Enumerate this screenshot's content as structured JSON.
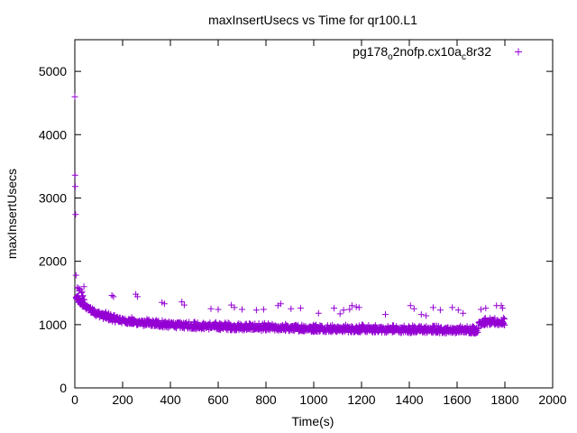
{
  "chart_data": {
    "type": "scatter",
    "title": "maxInsertUsecs vs Time for qr100.L1",
    "xlabel": "Time(s)",
    "ylabel": "maxInsertUsecs",
    "xlim": [
      0,
      2000
    ],
    "ylim": [
      0,
      5500
    ],
    "xticks": [
      0,
      200,
      400,
      600,
      800,
      1000,
      1200,
      1400,
      1600,
      1800,
      2000
    ],
    "yticks": [
      0,
      1000,
      2000,
      3000,
      4000,
      5000
    ],
    "grid": false,
    "legend_position": "top-right",
    "series": [
      {
        "name_parts": [
          "pg178",
          "o",
          "2nofp.cx10a",
          "c",
          "8r32"
        ],
        "color": "#9400d3",
        "marker": "plus",
        "outliers": [
          [
            0,
            4600
          ],
          [
            1,
            3360
          ],
          [
            2,
            3180
          ],
          [
            3,
            2740
          ],
          [
            5,
            1780
          ],
          [
            155,
            1460
          ],
          [
            162,
            1440
          ],
          [
            255,
            1480
          ],
          [
            262,
            1440
          ],
          [
            365,
            1350
          ],
          [
            375,
            1330
          ],
          [
            448,
            1360
          ],
          [
            458,
            1310
          ],
          [
            570,
            1250
          ],
          [
            600,
            1240
          ],
          [
            655,
            1310
          ],
          [
            668,
            1270
          ],
          [
            700,
            1240
          ],
          [
            760,
            1230
          ],
          [
            790,
            1240
          ],
          [
            850,
            1300
          ],
          [
            862,
            1330
          ],
          [
            905,
            1250
          ],
          [
            945,
            1260
          ],
          [
            1020,
            1180
          ],
          [
            1085,
            1260
          ],
          [
            1110,
            1170
          ],
          [
            1125,
            1230
          ],
          [
            1150,
            1240
          ],
          [
            1160,
            1300
          ],
          [
            1178,
            1280
          ],
          [
            1190,
            1270
          ],
          [
            1300,
            1160
          ],
          [
            1405,
            1300
          ],
          [
            1420,
            1250
          ],
          [
            1450,
            1160
          ],
          [
            1470,
            1140
          ],
          [
            1500,
            1270
          ],
          [
            1530,
            1230
          ],
          [
            1580,
            1270
          ],
          [
            1605,
            1230
          ],
          [
            1625,
            1180
          ],
          [
            1700,
            1240
          ],
          [
            1720,
            1260
          ],
          [
            1765,
            1300
          ],
          [
            1785,
            1300
          ],
          [
            1790,
            1260
          ]
        ]
      }
    ]
  }
}
